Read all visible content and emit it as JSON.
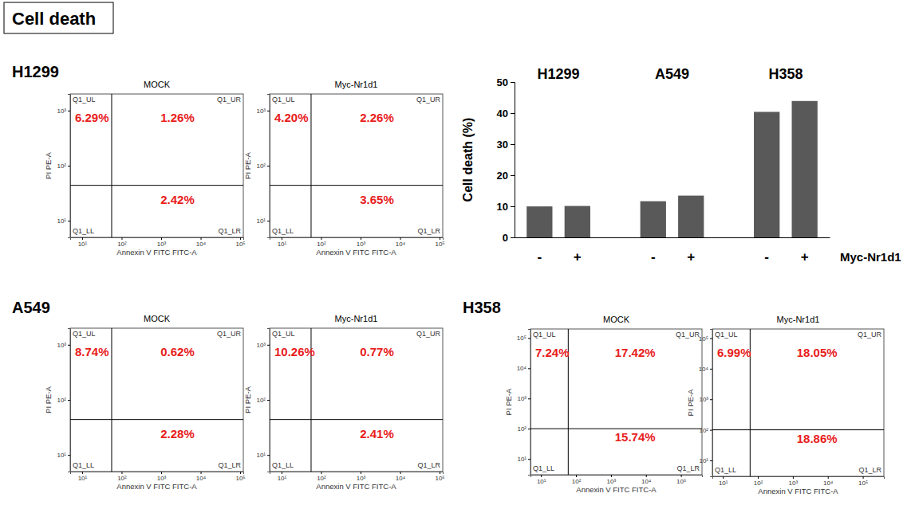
{
  "title": "Cell death",
  "chart_data": [
    {
      "type": "bar",
      "categories": [
        "-",
        "+",
        null,
        "-",
        "+",
        null,
        "-",
        "+"
      ],
      "values": [
        9.97,
        10.11,
        null,
        11.64,
        13.44,
        null,
        40.4,
        43.9
      ],
      "groups": [
        "H1299",
        "A549",
        "H358"
      ],
      "y_label": "Cell death (%)",
      "x_label": "Myc-Nr1d1",
      "ylim": [
        0,
        50
      ],
      "yticks": [
        0,
        10,
        20,
        30,
        40,
        50
      ],
      "color": "#595959"
    },
    {
      "type": "quadrant",
      "panel": "H1299",
      "title": "MOCK",
      "x_label": "Annexin V FITC FITC-A",
      "y_label": "PI PE-A",
      "log": true,
      "xlim": [
        5,
        120000
      ],
      "xticks": [
        {
          "value": 10,
          "label": "10¹"
        },
        {
          "value": 100,
          "label": "10²"
        },
        {
          "value": 1000,
          "label": "10³"
        },
        {
          "value": 10000,
          "label": "10⁴"
        },
        {
          "value": 100000,
          "label": "10⁵"
        }
      ],
      "ylim": [
        5,
        2000
      ],
      "yticks": [
        {
          "value": 10,
          "label": "10¹"
        },
        {
          "value": 100,
          "label": "10²"
        },
        {
          "value": 1000,
          "label": "10³"
        }
      ],
      "gate": {
        "x": 56,
        "y": 44
      },
      "quadrants": [
        {
          "name": "Q1_UL",
          "value": 6.29,
          "label": "6.29%"
        },
        {
          "name": "Q1_UR",
          "value": 1.26,
          "label": "1.26%"
        },
        {
          "name": "Q1_LR",
          "value": 2.42,
          "label": "2.42%"
        },
        {
          "name": "Q1_LL"
        }
      ],
      "color": "#e8201c"
    },
    {
      "type": "quadrant",
      "title": "Myc-Nr1d1",
      "x_label": "Annexin V FITC FITC-A",
      "y_label": "PI PE-A",
      "log": true,
      "xlim": [
        5,
        120000
      ],
      "xticks": [
        {
          "value": 10,
          "label": "10¹"
        },
        {
          "value": 100,
          "label": "10²"
        },
        {
          "value": 1000,
          "label": "10³"
        },
        {
          "value": 10000,
          "label": "10⁴"
        },
        {
          "value": 100000,
          "label": "10⁵"
        }
      ],
      "ylim": [
        5,
        2000
      ],
      "yticks": [
        {
          "value": 10,
          "label": "10¹"
        },
        {
          "value": 100,
          "label": "10²"
        },
        {
          "value": 1000,
          "label": "10³"
        }
      ],
      "gate": {
        "x": 56,
        "y": 44
      },
      "quadrants": [
        {
          "name": "Q1_UL",
          "value": 4.2,
          "label": "4.20%"
        },
        {
          "name": "Q1_UR",
          "value": 2.26,
          "label": "2.26%"
        },
        {
          "name": "Q1_LR",
          "value": 3.65,
          "label": "3.65%"
        },
        {
          "name": "Q1_LL"
        }
      ],
      "color": "#e8201c"
    },
    {
      "type": "quadrant",
      "panel": "A549",
      "title": "MOCK",
      "x_label": "Annexin V FITC FITC-A",
      "y_label": "PI PE-A",
      "log": true,
      "xlim": [
        5,
        120000
      ],
      "xticks": [
        {
          "value": 10,
          "label": "10¹"
        },
        {
          "value": 100,
          "label": "10²"
        },
        {
          "value": 1000,
          "label": "10³"
        },
        {
          "value": 10000,
          "label": "10⁴"
        },
        {
          "value": 100000,
          "label": "10⁵"
        }
      ],
      "ylim": [
        5,
        2000
      ],
      "yticks": [
        {
          "value": 10,
          "label": "10¹"
        },
        {
          "value": 100,
          "label": "10²"
        },
        {
          "value": 1000,
          "label": "10³"
        }
      ],
      "gate": {
        "x": 56,
        "y": 44
      },
      "quadrants": [
        {
          "name": "Q1_UL",
          "value": 8.74,
          "label": "8.74%"
        },
        {
          "name": "Q1_UR",
          "value": 0.62,
          "label": "0.62%"
        },
        {
          "name": "Q1_LR",
          "value": 2.28,
          "label": "2.28%"
        },
        {
          "name": "Q1_LL"
        }
      ],
      "color": "#e8201c"
    },
    {
      "type": "quadrant",
      "title": "Myc-Nr1d1",
      "x_label": "Annexin V FITC FITC-A",
      "y_label": "PI PE-A",
      "log": true,
      "xlim": [
        5,
        120000
      ],
      "xticks": [
        {
          "value": 10,
          "label": "10¹"
        },
        {
          "value": 100,
          "label": "10²"
        },
        {
          "value": 1000,
          "label": "10³"
        },
        {
          "value": 10000,
          "label": "10⁴"
        },
        {
          "value": 100000,
          "label": "10⁵"
        }
      ],
      "ylim": [
        5,
        2000
      ],
      "yticks": [
        {
          "value": 10,
          "label": "10¹"
        },
        {
          "value": 100,
          "label": "10²"
        },
        {
          "value": 1000,
          "label": "10³"
        }
      ],
      "gate": {
        "x": 56,
        "y": 44
      },
      "quadrants": [
        {
          "name": "Q1_UL",
          "value": 10.26,
          "label": "10.26%"
        },
        {
          "name": "Q1_UR",
          "value": 0.77,
          "label": "0.77%"
        },
        {
          "name": "Q1_LR",
          "value": 2.41,
          "label": "2.41%"
        },
        {
          "name": "Q1_LL"
        }
      ],
      "color": "#e8201c"
    },
    {
      "type": "quadrant",
      "panel": "H358",
      "title": "MOCK",
      "x_label": "Annexin V FITC FITC-A",
      "y_label": "PI PE-A",
      "log": true,
      "xlim": [
        5,
        400000
      ],
      "xticks": [
        {
          "value": 10,
          "label": "10¹"
        },
        {
          "value": 100,
          "label": "10²"
        },
        {
          "value": 1000,
          "label": "10³"
        },
        {
          "value": 10000,
          "label": "10⁴"
        },
        {
          "value": 100000,
          "label": "10⁵"
        }
      ],
      "ylim": [
        3,
        200000
      ],
      "yticks": [
        {
          "value": 10,
          "label": "10¹"
        },
        {
          "value": 100,
          "label": "10²"
        },
        {
          "value": 1000,
          "label": "10³"
        },
        {
          "value": 10000,
          "label": "10⁴"
        },
        {
          "value": 100000,
          "label": "10⁵"
        }
      ],
      "gate": {
        "x": 60,
        "y": 100
      },
      "quadrants": [
        {
          "name": "Q1_UL",
          "value": 7.24,
          "label": "7.24%"
        },
        {
          "name": "Q1_UR",
          "value": 17.42,
          "label": "17.42%"
        },
        {
          "name": "Q1_LR",
          "value": 15.74,
          "label": "15.74%"
        },
        {
          "name": "Q1_LL"
        }
      ],
      "color": "#e8201c"
    },
    {
      "type": "quadrant",
      "title": "Myc-Nr1d1",
      "x_label": "Annexin V FITC FITC-A",
      "y_label": "PI PE-A",
      "log": true,
      "xlim": [
        5,
        400000
      ],
      "xticks": [
        {
          "value": 10,
          "label": "10¹"
        },
        {
          "value": 100,
          "label": "10²"
        },
        {
          "value": 1000,
          "label": "10³"
        },
        {
          "value": 10000,
          "label": "10⁴"
        },
        {
          "value": 100000,
          "label": "10⁵"
        }
      ],
      "ylim": [
        3,
        200000
      ],
      "yticks": [
        {
          "value": 10,
          "label": "10¹"
        },
        {
          "value": 100,
          "label": "10²"
        },
        {
          "value": 1000,
          "label": "10³"
        },
        {
          "value": 10000,
          "label": "10⁴"
        },
        {
          "value": 100000,
          "label": "10⁵"
        }
      ],
      "gate": {
        "x": 60,
        "y": 100
      },
      "quadrants": [
        {
          "name": "Q1_UL",
          "value": 6.99,
          "label": "6.99%"
        },
        {
          "name": "Q1_UR",
          "value": 18.05,
          "label": "18.05%"
        },
        {
          "name": "Q1_LR",
          "value": 18.86,
          "label": "18.86%"
        },
        {
          "name": "Q1_LL"
        }
      ],
      "color": "#e8201c"
    }
  ]
}
